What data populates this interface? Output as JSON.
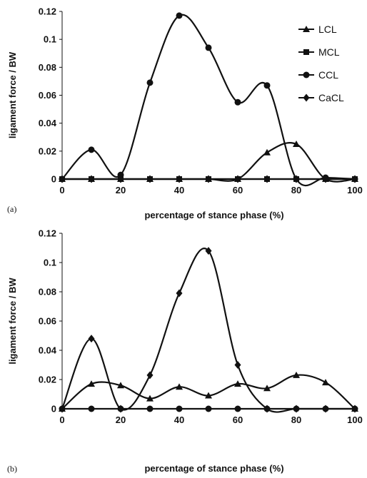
{
  "chart_data": [
    {
      "type": "line",
      "panel_label": "(a)",
      "xlabel": "percentage of stance phase (%)",
      "ylabel": "ligament force / BW",
      "xlim": [
        0,
        100
      ],
      "ylim": [
        0,
        0.12
      ],
      "xticks": [
        "0",
        "20",
        "40",
        "60",
        "80",
        "100"
      ],
      "yticks": [
        "0",
        "0.02",
        "0.04",
        "0.06",
        "0.08",
        "0.1",
        "0.12"
      ],
      "grid": false,
      "legend_position": "top-right",
      "x": [
        0,
        10,
        20,
        30,
        40,
        50,
        60,
        70,
        80,
        90,
        100
      ],
      "series": [
        {
          "name": "LCL",
          "marker": "triangle",
          "values": [
            0,
            0,
            0,
            0,
            0,
            0,
            0,
            0.019,
            0.025,
            0,
            0
          ]
        },
        {
          "name": "MCL",
          "marker": "square",
          "values": [
            0,
            0,
            0,
            0,
            0,
            0,
            0,
            0,
            0,
            0,
            0
          ]
        },
        {
          "name": "CCL",
          "marker": "circle",
          "values": [
            0,
            0.021,
            0.003,
            0.069,
            0.117,
            0.094,
            0.055,
            0.067,
            0,
            0.001,
            0
          ]
        },
        {
          "name": "CaCL",
          "marker": "diamond",
          "values": [
            0,
            0,
            0,
            0,
            0,
            0,
            0,
            0,
            0,
            0,
            0
          ]
        }
      ]
    },
    {
      "type": "line",
      "panel_label": "(b)",
      "xlabel": "percentage of stance phase (%)",
      "ylabel": "ligament force / BW",
      "xlim": [
        0,
        100
      ],
      "ylim": [
        0,
        0.12
      ],
      "xticks": [
        "0",
        "20",
        "40",
        "60",
        "80",
        "100"
      ],
      "yticks": [
        "0",
        "0.02",
        "0.04",
        "0.06",
        "0.08",
        "0.1",
        "0.12"
      ],
      "grid": false,
      "x": [
        0,
        10,
        20,
        30,
        40,
        50,
        60,
        70,
        80,
        90,
        100
      ],
      "series": [
        {
          "marker": "triangle",
          "values": [
            0,
            0.017,
            0.016,
            0.007,
            0.015,
            0.009,
            0.017,
            0.014,
            0.023,
            0.018,
            0
          ]
        },
        {
          "marker": "circle",
          "values": [
            0,
            0,
            0,
            0,
            0,
            0,
            0,
            0,
            0,
            0,
            0
          ]
        },
        {
          "marker": "diamond",
          "values": [
            0,
            0.048,
            0,
            0.023,
            0.079,
            0.108,
            0.03,
            0,
            0,
            0,
            0
          ]
        }
      ]
    }
  ]
}
